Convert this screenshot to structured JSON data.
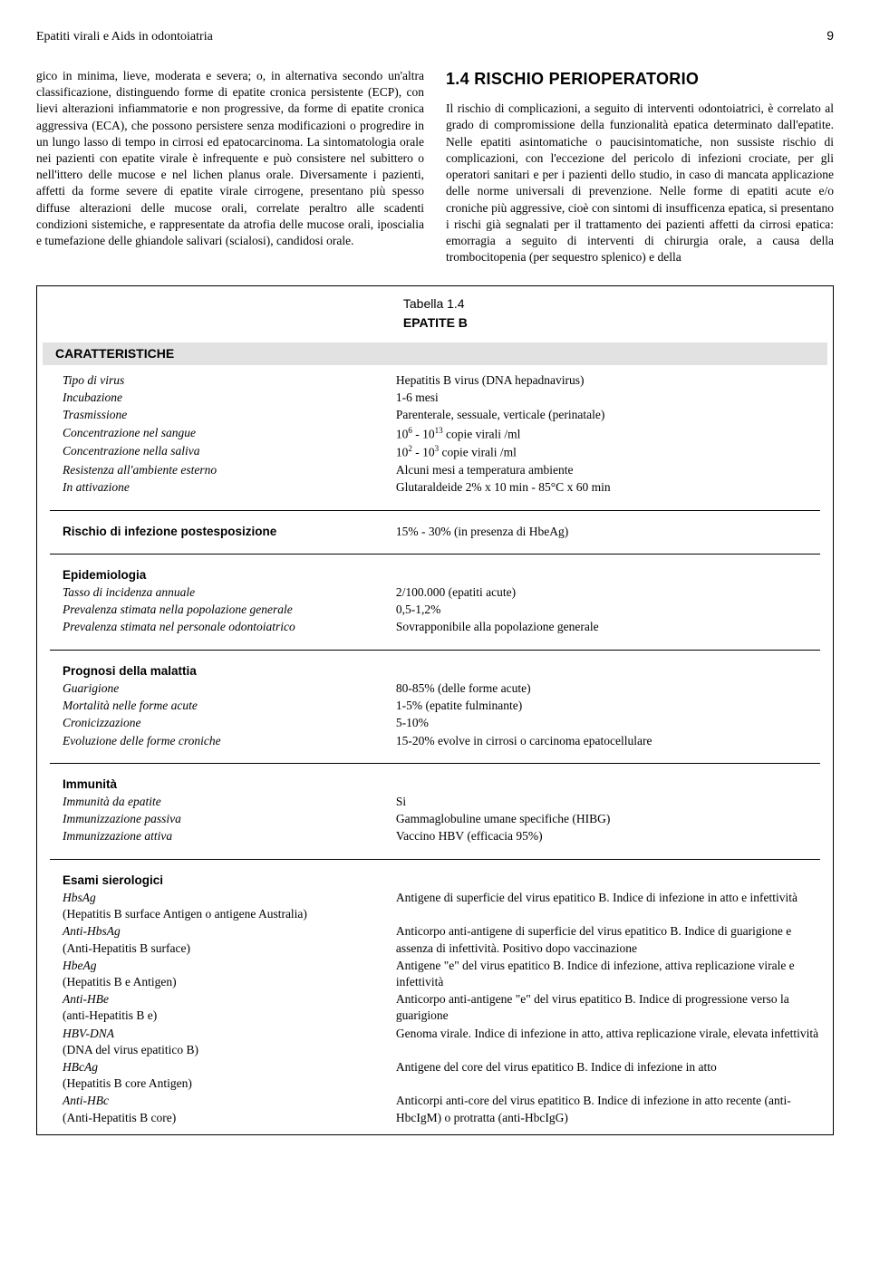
{
  "header": {
    "title": "Epatiti virali e Aids in odontoiatria",
    "page": "9"
  },
  "col_left": "gico in minima, lieve, moderata e severa; o, in alternativa secondo un'altra classificazione, distinguendo forme di epatite cronica persistente (ECP), con lievi alterazioni infiammatorie e non progressive, da forme di epatite cronica aggressiva (ECA), che possono persistere senza modificazioni o progredire in un lungo lasso di tempo in cirrosi ed epatocarcinoma. La sintomatologia orale nei pazienti con epatite virale è infrequente e può consistere nel subittero o nell'ittero delle mucose e nel lichen planus orale. Diversamente i pazienti, affetti da forme severe di epatite virale cirrogene, presentano più spesso diffuse alterazioni delle mucose orali, correlate peraltro alle scadenti condizioni sistemiche, e rappresentate da atrofia delle mucose orali, iposcialia e tumefazione delle ghiandole salivari (scialosi), candidosi orale.",
  "heading_right": "1.4 RISCHIO PERIOPERATORIO",
  "col_right": "Il rischio di complicazioni, a seguito di interventi odontoiatrici, è correlato al grado di compromissione della funzionalità epatica determinato dall'epatite. Nelle epatiti asintomatiche o paucisintomatiche, non sussiste rischio di complicazioni, con l'eccezione del pericolo di infezioni crociate, per gli operatori sanitari e per i pazienti dello studio, in caso di mancata applicazione delle norme universali di prevenzione. Nelle forme di epatiti acute e/o croniche più aggressive, cioè con sintomi di insufficenza epatica, si presentano i rischi già segnalati per il trattamento dei pazienti affetti da cirrosi epatica: emorragia a seguito di interventi di chirurgia orale, a causa della trombocitopenia (per sequestro splenico) e della",
  "table": {
    "caption": "Tabella 1.4",
    "title": "EPATITE B",
    "char_header": "CARATTERISTICHE",
    "sec1": {
      "r1l": "Tipo di virus",
      "r1r": "Hepatitis B virus (DNA hepadnavirus)",
      "r2l": "Incubazione",
      "r2r": "1-6 mesi",
      "r3l": "Trasmissione",
      "r3r": "Parenterale, sessuale, verticale (perinatale)",
      "r4l": "Concentrazione nel sangue",
      "r4r_pre": "10",
      "r4r_s1": "6",
      "r4r_mid": " - 10",
      "r4r_s2": "13",
      "r4r_post": " copie virali /ml",
      "r5l": "Concentrazione nella saliva",
      "r5r_pre": "10",
      "r5r_s1": "2",
      "r5r_mid": " - 10",
      "r5r_s2": "3",
      "r5r_post": " copie virali /ml",
      "r6l": "Resistenza all'ambiente esterno",
      "r6r": "Alcuni mesi a temperatura ambiente",
      "r7l": "In attivazione",
      "r7r": "Glutaraldeide 2% x 10 min - 85°C x 60 min"
    },
    "sec2": {
      "r1l": "Rischio di infezione postesposizione",
      "r1r": "15% - 30% (in presenza di HbeAg)"
    },
    "sec3": {
      "label": "Epidemiologia",
      "r1l": "Tasso di incidenza annuale",
      "r1r": "2/100.000 (epatiti acute)",
      "r2l": "Prevalenza stimata nella popolazione generale",
      "r2r": "0,5-1,2%",
      "r3l": "Prevalenza stimata nel personale odontoiatrico",
      "r3r": "Sovrapponibile alla popolazione generale"
    },
    "sec4": {
      "label": "Prognosi della malattia",
      "r1l": "Guarigione",
      "r1r": "80-85% (delle forme acute)",
      "r2l": "Mortalità nelle forme acute",
      "r2r": "1-5% (epatite fulminante)",
      "r3l": "Cronicizzazione",
      "r3r": "5-10%",
      "r4l": "Evoluzione delle forme croniche",
      "r4r": "15-20% evolve in cirrosi o carcinoma epatocellulare"
    },
    "sec5": {
      "label": "Immunità",
      "r1l": "Immunità da epatite",
      "r1r": "Si",
      "r2l": "Immunizzazione passiva",
      "r2r": "Gammaglobuline umane specifiche (HIBG)",
      "r3l": "Immunizzazione attiva",
      "r3r": "Vaccino HBV (efficacia 95%)"
    },
    "sec6": {
      "label": "Esami sierologici",
      "r1l": "HbsAg",
      "r1s": "(Hepatitis B surface Antigen o antigene Australia)",
      "r1r": "Antigene di superficie del virus epatitico B. Indice di infezione in atto e infettività",
      "r2l": "Anti-HbsAg",
      "r2s": "(Anti-Hepatitis B surface)",
      "r2r": "Anticorpo anti-antigene di superficie del virus epatitico B. Indice di guarigione e assenza di infettività. Positivo dopo vaccinazione",
      "r3l": "HbeAg",
      "r3s": "(Hepatitis B e Antigen)",
      "r3r": "Antigene \"e\" del virus epatitico B. Indice di infezione, attiva replicazione virale e infettività",
      "r4l": "Anti-HBe",
      "r4s": "(anti-Hepatitis B e)",
      "r4r": "Anticorpo anti-antigene \"e\" del virus epatitico B. Indice di progressione verso la guarigione",
      "r5l": "HBV-DNA",
      "r5s": "(DNA del virus epatitico B)",
      "r5r": "Genoma virale. Indice di infezione in atto, attiva replicazione virale, elevata infettività",
      "r6l": "HBcAg",
      "r6s": "(Hepatitis B core Antigen)",
      "r6r": "Antigene del core del virus epatitico B. Indice di infezione in atto",
      "r7l": "Anti-HBc",
      "r7s": "(Anti-Hepatitis B core)",
      "r7r": "Anticorpi anti-core del virus epatitico B. Indice di infezione in atto recente (anti-HbcIgM) o protratta (anti-HbcIgG)"
    }
  }
}
